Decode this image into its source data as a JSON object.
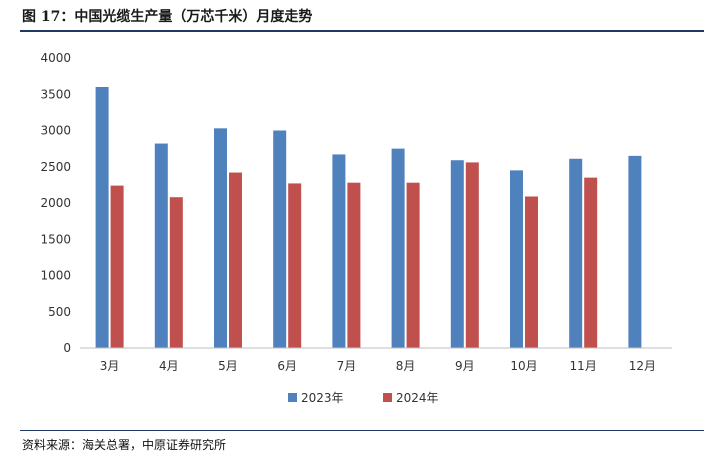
{
  "header": {
    "title": "图 17：中国光缆生产量（万芯千米）月度走势"
  },
  "footer": {
    "source": "资料来源：海关总署，中原证券研究所"
  },
  "chart_data": {
    "type": "bar",
    "categories": [
      "3月",
      "4月",
      "5月",
      "6月",
      "7月",
      "8月",
      "9月",
      "10月",
      "11月",
      "12月"
    ],
    "series": [
      {
        "name": "2023年",
        "color": "#4f81bd",
        "values": [
          3600,
          2820,
          3030,
          3000,
          2670,
          2750,
          2590,
          2450,
          2610,
          2650
        ]
      },
      {
        "name": "2024年",
        "color": "#c0504d",
        "values": [
          2240,
          2080,
          2420,
          2270,
          2280,
          2280,
          2560,
          2090,
          2350,
          null
        ]
      }
    ],
    "y_ticks": [
      "0",
      "500",
      "1000",
      "1500",
      "2000",
      "2500",
      "3000",
      "3500",
      "4000"
    ],
    "ylim": [
      0,
      4000
    ],
    "grid": false,
    "legend": "bottom-center"
  }
}
